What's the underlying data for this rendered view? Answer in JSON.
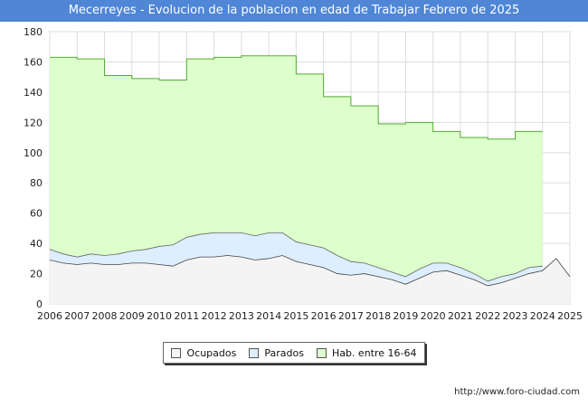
{
  "chart_data": {
    "type": "area",
    "title": "Mecerreyes - Evolucion de la poblacion en edad de Trabajar Febrero de 2025",
    "xlabel": "",
    "ylabel": "",
    "x_range": [
      2006,
      2025
    ],
    "ylim": [
      0,
      180
    ],
    "y_ticks": [
      0,
      20,
      40,
      60,
      80,
      100,
      120,
      140,
      160,
      180
    ],
    "x_ticks": [
      2006,
      2007,
      2008,
      2009,
      2010,
      2011,
      2012,
      2013,
      2014,
      2015,
      2016,
      2017,
      2018,
      2019,
      2020,
      2021,
      2022,
      2023,
      2024,
      2025
    ],
    "legend_position": "bottom-center",
    "series": [
      {
        "name": "Ocupados",
        "color": "#f4f4f4",
        "x": [
          2006,
          2006.5,
          2007,
          2007.5,
          2008,
          2008.5,
          2009,
          2009.5,
          2010,
          2010.5,
          2011,
          2011.5,
          2012,
          2012.5,
          2013,
          2013.5,
          2014,
          2014.5,
          2015,
          2015.5,
          2016,
          2016.5,
          2017,
          2017.5,
          2018,
          2018.5,
          2019,
          2019.5,
          2020,
          2020.5,
          2021,
          2021.5,
          2022,
          2022.5,
          2023,
          2023.5,
          2024,
          2024.5,
          2025
        ],
        "values": [
          29,
          27,
          26,
          27,
          26,
          26,
          27,
          27,
          26,
          25,
          29,
          31,
          31,
          32,
          31,
          29,
          30,
          32,
          28,
          26,
          24,
          20,
          19,
          20,
          18,
          16,
          13,
          17,
          21,
          22,
          19,
          16,
          12,
          14,
          17,
          20,
          22,
          30,
          18
        ]
      },
      {
        "name": "Parados",
        "color": "#ddeeff",
        "x": [
          2006,
          2006.5,
          2007,
          2007.5,
          2008,
          2008.5,
          2009,
          2009.5,
          2010,
          2010.5,
          2011,
          2011.5,
          2012,
          2012.5,
          2013,
          2013.5,
          2014,
          2014.5,
          2015,
          2015.5,
          2016,
          2016.5,
          2017,
          2017.5,
          2018,
          2018.5,
          2019,
          2019.5,
          2020,
          2020.5,
          2021,
          2021.5,
          2022,
          2022.5,
          2023,
          2023.5,
          2024
        ],
        "values": [
          7,
          6,
          5,
          6,
          6,
          7,
          8,
          9,
          12,
          14,
          15,
          15,
          16,
          15,
          16,
          16,
          17,
          15,
          13,
          13,
          13,
          12,
          9,
          7,
          6,
          5,
          5,
          6,
          6,
          5,
          5,
          4,
          3,
          4,
          3,
          4,
          3
        ]
      },
      {
        "name": "Hab. entre 16-64",
        "color": "#ddffcc",
        "x": [
          2006,
          2007,
          2008,
          2009,
          2010,
          2011,
          2012,
          2013,
          2014,
          2015,
          2016,
          2017,
          2018,
          2019,
          2020,
          2021,
          2022,
          2023
        ],
        "values": [
          163,
          162,
          151,
          149,
          148,
          162,
          163,
          164,
          164,
          152,
          137,
          131,
          119,
          120,
          114,
          110,
          109,
          114
        ]
      }
    ]
  },
  "legend": {
    "ocupados": "Ocupados",
    "parados": "Parados",
    "hab": "Hab. entre 16-64"
  },
  "source": "http://www.foro-ciudad.com"
}
